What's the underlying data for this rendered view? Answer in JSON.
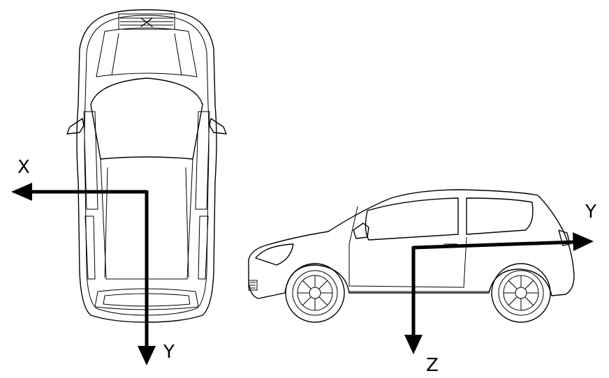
{
  "top_view": {
    "axis_x_label": "X",
    "axis_y_label": "Y"
  },
  "side_view": {
    "axis_y_label": "Y",
    "axis_z_label": "Z"
  },
  "colors": {
    "line": "#000000",
    "background": "#ffffff"
  }
}
